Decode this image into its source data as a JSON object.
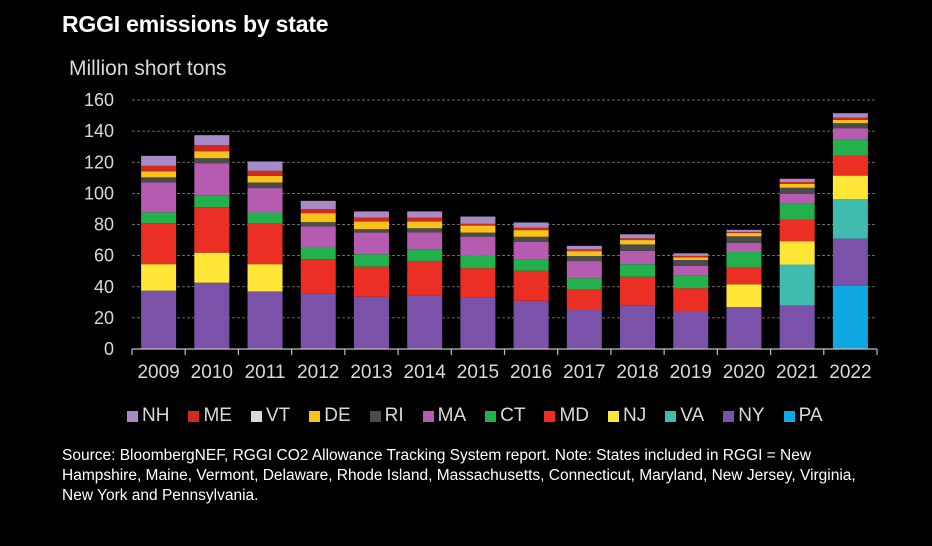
{
  "title": "RGGI emissions by state",
  "source_note": "Source: BloombergNEF, RGGI CO2 Allowance Tracking System report. Note: States included in RGGI = New Hampshire, Maine, Vermont, Delaware, Rhode Island, Massachusetts, Connecticut, Maryland, New Jersey, Virginia, New York and Pennsylvania.",
  "chart_data": {
    "type": "bar",
    "stacked": true,
    "title": "RGGI emissions by state",
    "xlabel": "",
    "ylabel": "Million short tons",
    "ylim": [
      0,
      160
    ],
    "yticks": [
      0,
      20,
      40,
      60,
      80,
      100,
      120,
      140,
      160
    ],
    "grid": true,
    "legend_position": "bottom",
    "categories": [
      "2009",
      "2010",
      "2011",
      "2012",
      "2013",
      "2014",
      "2015",
      "2016",
      "2017",
      "2018",
      "2019",
      "2020",
      "2021",
      "2022"
    ],
    "series": [
      {
        "name": "PA",
        "color": "#10a8e3",
        "values": [
          0,
          0,
          0,
          0,
          0,
          0,
          0,
          0,
          0,
          0,
          0,
          0,
          0,
          40.7
        ]
      },
      {
        "name": "NY",
        "color": "#7b52a9",
        "values": [
          37.5,
          42.6,
          37.0,
          35.8,
          33.6,
          34.3,
          33.0,
          31.0,
          25.0,
          27.8,
          24.4,
          27.0,
          28.0,
          30.2
        ]
      },
      {
        "name": "VA",
        "color": "#3fbcad",
        "values": [
          0,
          0,
          0,
          0,
          0,
          0,
          0,
          0,
          0,
          0,
          0,
          0,
          26.3,
          25.3
        ]
      },
      {
        "name": "NJ",
        "color": "#ffe637",
        "values": [
          17.0,
          19.3,
          17.5,
          0,
          0,
          0,
          0,
          0,
          0,
          0,
          0,
          14.6,
          15.0,
          15.2
        ]
      },
      {
        "name": "MD",
        "color": "#ec2f24",
        "values": [
          26.3,
          29.2,
          26.2,
          21.9,
          19.3,
          22.3,
          18.9,
          19.3,
          13.5,
          18.6,
          14.6,
          11.1,
          13.7,
          12.9
        ]
      },
      {
        "name": "CT",
        "color": "#22b14c",
        "values": [
          7.0,
          7.7,
          7.0,
          7.5,
          8.0,
          7.5,
          8.1,
          7.3,
          6.9,
          8.1,
          8.1,
          9.6,
          10.3,
          10.1
        ]
      },
      {
        "name": "MA",
        "color": "#b65cb0",
        "values": [
          19.3,
          20.6,
          15.7,
          13.5,
          13.9,
          10.9,
          12.2,
          11.3,
          11.1,
          8.6,
          6.4,
          5.8,
          6.4,
          7.5
        ]
      },
      {
        "name": "RI",
        "color": "#4b4b4b",
        "values": [
          3.2,
          3.2,
          3.6,
          2.8,
          2.2,
          2.6,
          2.6,
          3.2,
          3.2,
          4.1,
          3.7,
          4.3,
          3.9,
          3.2
        ]
      },
      {
        "name": "DE",
        "color": "#f6c31a",
        "values": [
          3.9,
          4.5,
          4.3,
          5.8,
          4.9,
          4.3,
          4.5,
          4.3,
          3.2,
          2.8,
          1.7,
          2.1,
          2.6,
          2.1
        ]
      },
      {
        "name": "VT",
        "color": "#d9d9d9",
        "values": [
          0,
          0,
          0,
          0,
          0,
          0,
          0,
          0,
          0,
          0,
          0,
          0,
          0,
          0
        ]
      },
      {
        "name": "ME",
        "color": "#d02a22",
        "values": [
          3.5,
          3.9,
          3.2,
          2.6,
          2.6,
          2.6,
          1.1,
          1.5,
          1.1,
          1.1,
          0.9,
          0.6,
          1.1,
          1.5
        ]
      },
      {
        "name": "NH",
        "color": "#a88ac6",
        "values": [
          6.4,
          6.4,
          6.0,
          5.3,
          3.9,
          3.9,
          4.7,
          3.4,
          2.3,
          2.6,
          1.7,
          1.5,
          2.1,
          2.8
        ]
      }
    ],
    "legend_order": [
      "NH",
      "ME",
      "VT",
      "DE",
      "RI",
      "MA",
      "CT",
      "MD",
      "NJ",
      "VA",
      "NY",
      "PA"
    ]
  }
}
